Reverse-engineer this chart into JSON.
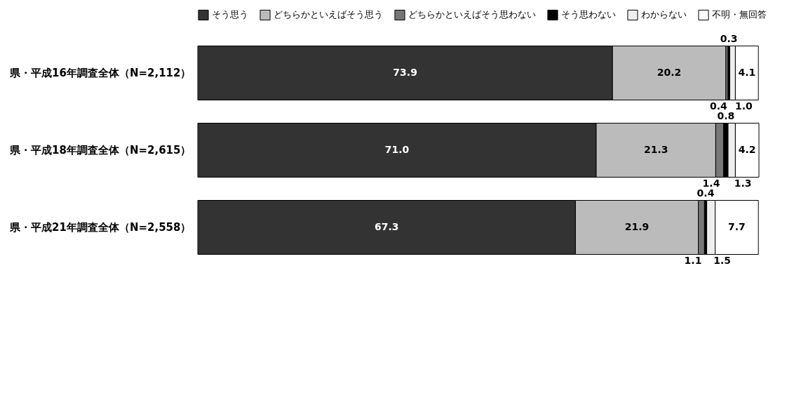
{
  "chart_data": {
    "type": "bar",
    "orientation": "horizontal",
    "stacked": true,
    "legend": "top",
    "tick_labels": "y",
    "categories": [
      "県・平成16年調査全体（N=2,112）",
      "県・平成18年調査全体（N=2,615）",
      "県・平成21年調査全体（N=2,558）"
    ],
    "series": [
      {
        "name": "そう思う",
        "color": "#333333",
        "values": [
          73.9,
          71.0,
          67.3
        ],
        "value_labels": [
          "73.9",
          "71.0",
          "67.3"
        ]
      },
      {
        "name": "どちらかといえばそう思う",
        "color": "#bbbbbb",
        "values": [
          20.2,
          21.3,
          21.9
        ],
        "value_labels": [
          "20.2",
          "21.3",
          "21.9"
        ]
      },
      {
        "name": "どちらかといえばそう思わない",
        "color": "#777777",
        "values": [
          0.4,
          1.4,
          1.1
        ],
        "value_labels": [
          "0.4",
          "1.4",
          "1.1"
        ]
      },
      {
        "name": "そう思わない",
        "color": "#000000",
        "values": [
          0.3,
          0.8,
          0.4
        ],
        "value_labels": [
          "0.3",
          "0.8",
          "0.4"
        ]
      },
      {
        "name": "わからない",
        "color": "#eeeeee",
        "values": [
          1.0,
          1.3,
          1.5
        ],
        "value_labels": [
          "1.0",
          "1.3",
          "1.5"
        ]
      },
      {
        "name": "不明・無回答",
        "color": "#ffffff",
        "values": [
          4.1,
          4.2,
          7.7
        ],
        "value_labels": [
          "4.1",
          "4.2",
          "7.7"
        ]
      }
    ]
  }
}
